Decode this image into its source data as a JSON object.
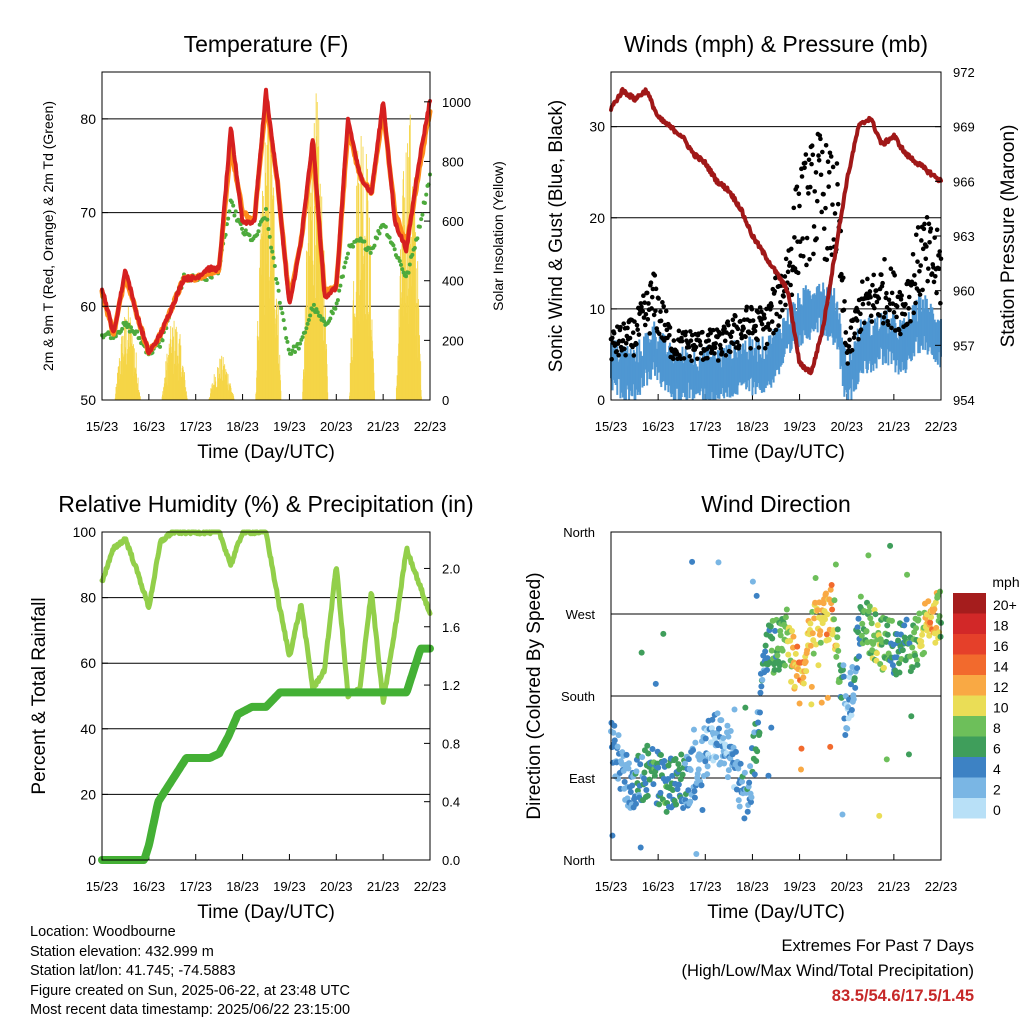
{
  "time_ticks": [
    "15/23",
    "16/23",
    "17/23",
    "18/23",
    "19/23",
    "20/23",
    "21/23",
    "22/23"
  ],
  "colors": {
    "temp_2m": "#d62020",
    "temp_9m": "#ff8c1a",
    "dewpoint": "#4daa3c",
    "solar": "#f5d547",
    "wind": "#4f97d2",
    "gust": "#000000",
    "pressure": "#a01818",
    "rh": "#92cf4a",
    "precip": "#44b035",
    "gridline": "#000000"
  },
  "chart_data": [
    {
      "id": "temperature",
      "type": "line",
      "title": "Temperature (F)",
      "xlabel": "Time (Day/UTC)",
      "ylabel": "2m & 9m T (Red, Orange) & 2m Td (Green)",
      "y2label": "Solar Insolation (Yellow)",
      "ylim": [
        50,
        85
      ],
      "yticks": [
        50,
        60,
        70,
        80
      ],
      "y2lim": [
        0,
        1100
      ],
      "y2ticks": [
        0,
        200,
        400,
        600,
        800,
        1000
      ],
      "grid": "horizontal",
      "x": [
        0,
        0.25,
        0.5,
        0.75,
        1,
        1.25,
        1.5,
        1.75,
        2,
        2.25,
        2.5,
        2.75,
        3,
        3.25,
        3.5,
        3.75,
        4,
        4.25,
        4.5,
        4.75,
        5,
        5.25,
        5.5,
        5.75,
        6,
        6.25,
        6.5,
        6.75,
        7
      ],
      "series": [
        {
          "key": "temp_2m",
          "values": [
            62,
            57,
            64,
            59,
            55,
            57,
            60,
            63,
            63,
            64,
            64,
            79,
            69,
            69,
            83,
            73,
            60,
            67,
            78,
            61,
            62,
            80,
            74,
            72,
            82,
            69,
            66,
            75,
            82
          ]
        },
        {
          "key": "temp_9m",
          "values": [
            61.5,
            57,
            63.5,
            59,
            55,
            57,
            60,
            63,
            63,
            63.5,
            64,
            77,
            70,
            69,
            82,
            73,
            60.5,
            67,
            77,
            61.5,
            62,
            79,
            74,
            72,
            81,
            70,
            66.5,
            74,
            81
          ]
        },
        {
          "key": "dewpoint",
          "values": [
            57,
            57,
            58,
            57,
            55,
            56,
            60,
            63,
            63,
            63,
            64,
            71,
            68,
            67,
            70,
            62,
            55,
            56,
            60,
            58,
            60,
            66,
            67,
            66,
            69,
            66,
            63,
            68,
            74
          ]
        }
      ],
      "solar_peaks": [
        {
          "day": 0.55,
          "peak": 320
        },
        {
          "day": 1.55,
          "peak": 280
        },
        {
          "day": 2.55,
          "peak": 150
        },
        {
          "day": 3.55,
          "peak": 1000
        },
        {
          "day": 4.55,
          "peak": 1050
        },
        {
          "day": 5.55,
          "peak": 1030
        },
        {
          "day": 6.55,
          "peak": 1000
        }
      ]
    },
    {
      "id": "winds",
      "type": "line",
      "title": "Winds (mph) & Pressure (mb)",
      "xlabel": "Time (Day/UTC)",
      "ylabel": "Sonic Wind & Gust (Blue, Black)",
      "y2label": "Station Pressure (Maroon)",
      "ylim": [
        0,
        36
      ],
      "yticks": [
        0,
        10,
        20,
        30
      ],
      "y2lim": [
        954,
        972
      ],
      "y2ticks": [
        954,
        957,
        960,
        963,
        966,
        969,
        972
      ],
      "grid": "horizontal",
      "pressure": {
        "x": [
          0,
          0.25,
          0.5,
          0.75,
          1,
          1.25,
          1.5,
          1.75,
          2,
          2.25,
          2.5,
          2.75,
          3,
          3.25,
          3.5,
          3.75,
          4,
          4.25,
          4.5,
          4.75,
          5,
          5.25,
          5.5,
          5.75,
          6,
          6.25,
          6.5,
          6.75,
          7
        ],
        "values": [
          970,
          971,
          970.5,
          971,
          969.5,
          969,
          968.5,
          967.5,
          967,
          966,
          965.5,
          964.5,
          963,
          962,
          961,
          960,
          956,
          955.5,
          958,
          962,
          966,
          969,
          969.5,
          968,
          968.5,
          967.5,
          967,
          966.5,
          966
        ]
      },
      "wind_levels": [
        {
          "x": 0,
          "wind": 4,
          "gust": 6
        },
        {
          "x": 0.5,
          "wind": 3,
          "gust": 7
        },
        {
          "x": 0.9,
          "wind": 6,
          "gust": 11
        },
        {
          "x": 1.3,
          "wind": 3,
          "gust": 6
        },
        {
          "x": 1.8,
          "wind": 3,
          "gust": 6
        },
        {
          "x": 2.3,
          "wind": 3,
          "gust": 6
        },
        {
          "x": 2.8,
          "wind": 4,
          "gust": 8
        },
        {
          "x": 3.3,
          "wind": 4,
          "gust": 8
        },
        {
          "x": 3.7,
          "wind": 7,
          "gust": 13
        },
        {
          "x": 4.0,
          "wind": 9,
          "gust": 20
        },
        {
          "x": 4.4,
          "wind": 11,
          "gust": 23
        },
        {
          "x": 4.8,
          "wind": 9,
          "gust": 20
        },
        {
          "x": 5.0,
          "wind": 2,
          "gust": 5
        },
        {
          "x": 5.3,
          "wind": 6,
          "gust": 10
        },
        {
          "x": 5.8,
          "wind": 7,
          "gust": 12
        },
        {
          "x": 6.2,
          "wind": 6,
          "gust": 10
        },
        {
          "x": 6.6,
          "wind": 9,
          "gust": 16
        },
        {
          "x": 7,
          "wind": 7,
          "gust": 14
        }
      ]
    },
    {
      "id": "humidity",
      "type": "line",
      "title": "Relative Humidity (%) & Precipitation (in)",
      "xlabel": "Time (Day/UTC)",
      "ylabel": "Percent & Total Rainfall",
      "ylim": [
        0,
        100
      ],
      "yticks": [
        0,
        20,
        40,
        60,
        80,
        100
      ],
      "y2lim": [
        0.0,
        2.25
      ],
      "y2ticks": [
        0.0,
        0.4,
        0.8,
        1.2,
        1.6,
        2.0
      ],
      "grid": "horizontal",
      "rh": {
        "x": [
          0,
          0.25,
          0.5,
          0.75,
          1,
          1.25,
          1.5,
          1.75,
          2,
          2.25,
          2.5,
          2.75,
          3,
          3.25,
          3.5,
          3.75,
          4,
          4.25,
          4.5,
          4.75,
          5,
          5.25,
          5.5,
          5.75,
          6,
          6.25,
          6.5,
          6.75,
          7
        ],
        "values": [
          85,
          95,
          98,
          88,
          77,
          97,
          100,
          100,
          100,
          100,
          100,
          90,
          100,
          100,
          100,
          80,
          62,
          78,
          52,
          58,
          90,
          50,
          52,
          82,
          48,
          70,
          95,
          85,
          75
        ]
      },
      "precip": {
        "x": [
          0,
          0.9,
          1.0,
          1.2,
          1.4,
          1.6,
          1.8,
          2.3,
          2.5,
          2.7,
          2.9,
          3.2,
          3.5,
          3.8,
          4,
          5,
          6,
          6.5,
          6.65,
          6.8,
          7
        ],
        "values": [
          0,
          0,
          0.1,
          0.4,
          0.5,
          0.6,
          0.7,
          0.7,
          0.73,
          0.85,
          1.0,
          1.05,
          1.05,
          1.15,
          1.15,
          1.15,
          1.15,
          1.15,
          1.3,
          1.45,
          1.45
        ]
      }
    },
    {
      "id": "wind_direction",
      "type": "scatter",
      "title": "Wind Direction",
      "xlabel": "Time (Day/UTC)",
      "ylabel": "Direction (Colored By Speed)",
      "ylim": [
        0,
        360
      ],
      "yticks": [
        "North",
        "East",
        "South",
        "West",
        "North"
      ],
      "grid": "horizontal",
      "legend_title": "mph",
      "legend_placement": "right",
      "legend_labels": [
        "20+",
        "18",
        "16",
        "14",
        "12",
        "10",
        "8",
        "6",
        "4",
        "2",
        "0"
      ],
      "legend_colors": [
        "#a51d1d",
        "#d22828",
        "#e5402a",
        "#f26a2d",
        "#f9a944",
        "#eadd56",
        "#6dbf5a",
        "#3f9e5b",
        "#3d82c4",
        "#7ab6e4",
        "#b8e0f7"
      ],
      "direction_segments": [
        {
          "x": 0,
          "dir": 130,
          "speed": 3
        },
        {
          "x": 0.4,
          "dir": 80,
          "speed": 3
        },
        {
          "x": 0.8,
          "dir": 100,
          "speed": 5
        },
        {
          "x": 1.2,
          "dir": 80,
          "speed": 6
        },
        {
          "x": 1.7,
          "dir": 90,
          "speed": 3
        },
        {
          "x": 2.2,
          "dir": 140,
          "speed": 2
        },
        {
          "x": 2.6,
          "dir": 110,
          "speed": 2
        },
        {
          "x": 2.9,
          "dir": 60,
          "speed": 4
        },
        {
          "x": 3.3,
          "dir": 230,
          "speed": 5
        },
        {
          "x": 3.7,
          "dir": 240,
          "speed": 8
        },
        {
          "x": 4.0,
          "dir": 200,
          "speed": 13
        },
        {
          "x": 4.3,
          "dir": 255,
          "speed": 10
        },
        {
          "x": 4.7,
          "dir": 275,
          "speed": 12
        },
        {
          "x": 5.0,
          "dir": 150,
          "speed": 1
        },
        {
          "x": 5.3,
          "dir": 260,
          "speed": 6
        },
        {
          "x": 5.7,
          "dir": 240,
          "speed": 9
        },
        {
          "x": 6.1,
          "dir": 230,
          "speed": 5
        },
        {
          "x": 6.5,
          "dir": 240,
          "speed": 7
        },
        {
          "x": 6.8,
          "dir": 265,
          "speed": 12
        },
        {
          "x": 7,
          "dir": 270,
          "speed": 7
        }
      ]
    }
  ],
  "info": {
    "location": "Location: Woodbourne",
    "elevation": "Station elevation: 432.999 m",
    "latlon": "Station lat/lon: 41.745; -74.5883",
    "created": "Figure created on Sun, 2025-06-22, at 23:48 UTC",
    "timestamp": "Most recent data timestamp: 2025/06/22 23:15:00"
  },
  "extremes": {
    "title": "Extremes For Past 7 Days",
    "subtitle": "(High/Low/Max Wind/Total Precipitation)",
    "values": "83.5/54.6/17.5/1.45"
  }
}
